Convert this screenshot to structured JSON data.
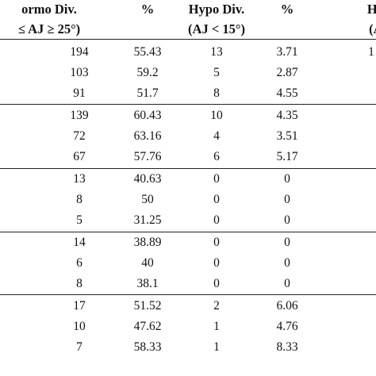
{
  "table": {
    "header": [
      [
        "ormo Div.",
        "≤ AJ ≥ 25°)"
      ],
      [
        "%"
      ],
      [
        "Hypo Div.",
        "(AJ < 15°)"
      ],
      [
        "%"
      ],
      [
        "Hyp",
        "(AJ"
      ]
    ],
    "rows": [
      [
        "194",
        "55.43",
        "13",
        "3.71",
        "1"
      ],
      [
        "103",
        "59.2",
        "5",
        "2.87"
      ],
      [
        "91",
        "51.7",
        "8",
        "4.55"
      ],
      [
        "139",
        "60.43",
        "10",
        "4.35"
      ],
      [
        "72",
        "63.16",
        "4",
        "3.51"
      ],
      [
        "67",
        "57.76",
        "6",
        "5.17"
      ],
      [
        "13",
        "40.63",
        "0",
        "0"
      ],
      [
        "8",
        "50",
        "0",
        "0"
      ],
      [
        "5",
        "31.25",
        "0",
        "0"
      ],
      [
        "14",
        "38.89",
        "0",
        "0"
      ],
      [
        "6",
        "40",
        "0",
        "0"
      ],
      [
        "8",
        "38.1",
        "0",
        "0"
      ],
      [
        "17",
        "51.52",
        "2",
        "6.06"
      ],
      [
        "10",
        "47.62",
        "1",
        "4.76"
      ],
      [
        "7",
        "58.33",
        "1",
        "8.33"
      ]
    ]
  }
}
